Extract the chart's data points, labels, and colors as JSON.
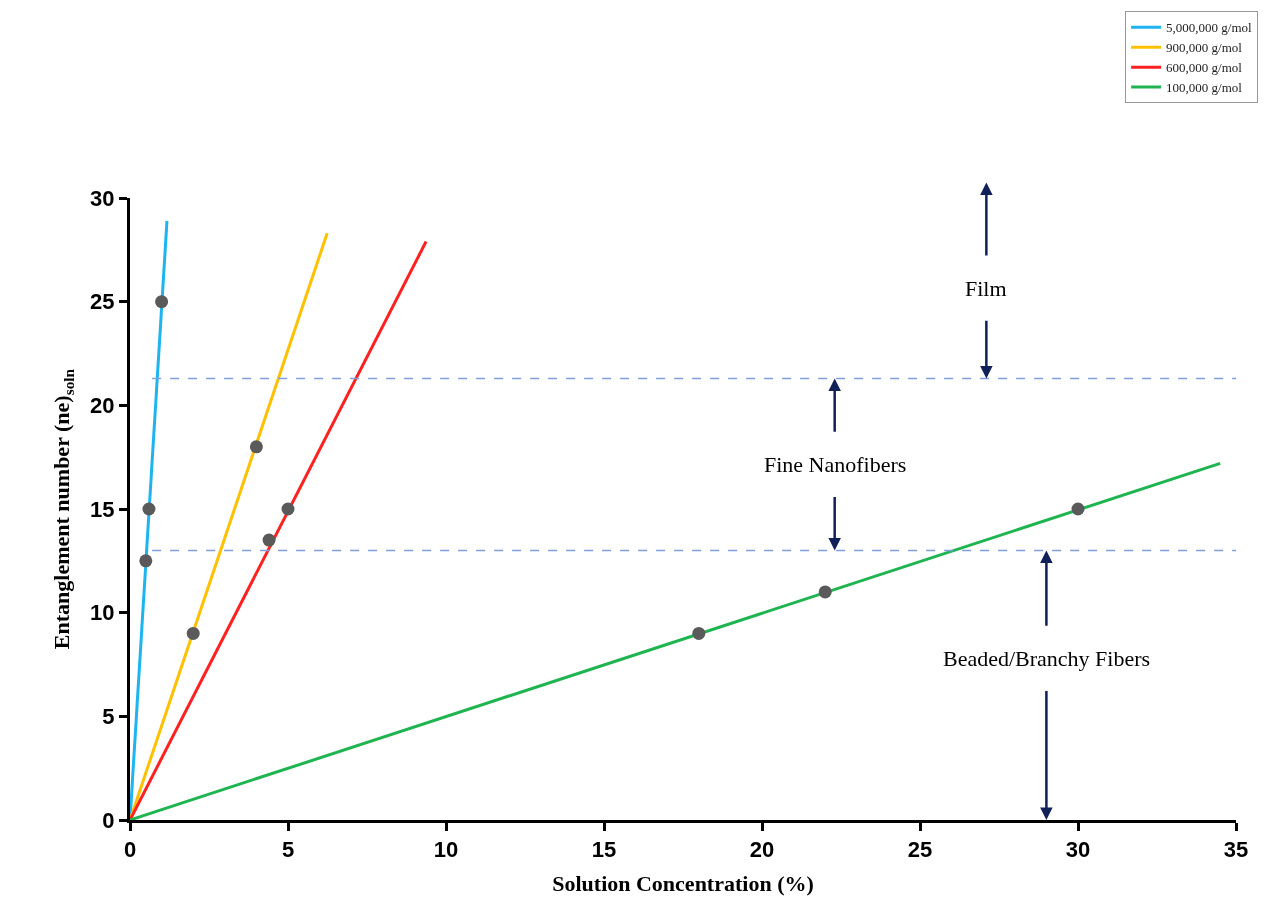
{
  "chart_data": {
    "type": "line",
    "xlabel": "Solution Concentration (%)",
    "ylabel": "Entanglement number (ne)$_{soln}$",
    "xlim": [
      0,
      35
    ],
    "xticks": [
      0,
      5,
      10,
      15,
      20,
      25,
      30,
      35
    ],
    "ylim": [
      0,
      30
    ],
    "yticks": [
      0,
      5,
      10,
      15,
      20,
      25,
      30
    ],
    "grid": false,
    "legend": "top right",
    "marker": "none",
    "line_style": "solid",
    "series": [
      {
        "name": "5,000,000 g/mol",
        "color": "#1eb4f0",
        "x": [
          0,
          1.17
        ],
        "values": [
          0,
          28.9
        ]
      },
      {
        "name": "900,000 g/mol",
        "color": "#ffc000",
        "x": [
          0,
          6.24
        ],
        "values": [
          0,
          28.3
        ]
      },
      {
        "name": "600,000 g/mol",
        "color": "#ff2020",
        "x": [
          0,
          9.37
        ],
        "values": [
          0,
          27.9
        ]
      },
      {
        "name": "100,000 g/mol",
        "color": "#1eb450",
        "x": [
          0,
          34.5
        ],
        "values": [
          0,
          17.2
        ]
      },
      {
        "color": "#5a5a5a",
        "type": "scatter",
        "marker": "circle",
        "x": [
          0.5,
          0.6,
          1.0,
          2.0,
          4.0,
          4.4,
          5.0,
          18,
          22,
          30
        ],
        "values": [
          12.5,
          15,
          25,
          9,
          18,
          13.5,
          15,
          9,
          11,
          15
        ]
      }
    ],
    "ref_lines": [
      {
        "axis": "y",
        "value": 21.3,
        "color": "#7f9fe0",
        "line_style": "dashed"
      },
      {
        "axis": "y",
        "value": 13.0,
        "color": "#7f9fe0",
        "line_style": "dashed"
      }
    ],
    "annotations": [
      {
        "text": "Film",
        "x": 27.1,
        "y": 21.3
      },
      {
        "text": "Fine Nanofibers",
        "x": 22.3,
        "y": 13.0
      },
      {
        "text": "Beaded/Branchy Fibers",
        "x": 29.0,
        "y": 13.0
      }
    ]
  }
}
